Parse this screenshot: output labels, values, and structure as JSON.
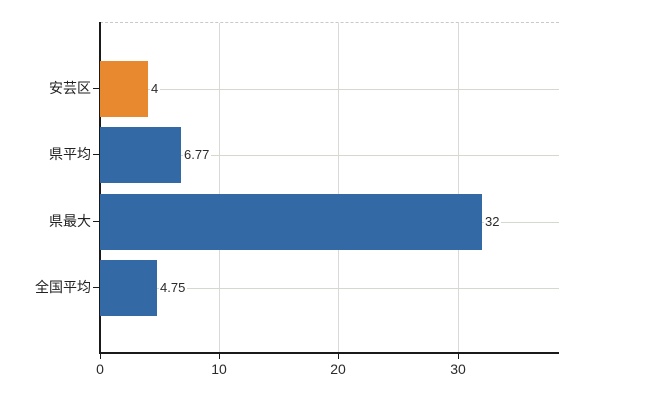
{
  "chart_data": {
    "type": "bar",
    "orientation": "horizontal",
    "title": "",
    "xlabel": "",
    "ylabel": "",
    "categories": [
      "安芸区",
      "県平均",
      "県最大",
      "全国平均"
    ],
    "values": [
      4,
      6.77,
      32,
      4.75
    ],
    "value_labels": [
      "4",
      "6.77",
      "32",
      "4.75"
    ],
    "bar_colors": [
      "#e8882f",
      "#336aa6",
      "#336aa6",
      "#336aa6"
    ],
    "highlight_category": "安芸区",
    "x_ticks": [
      0,
      10,
      20,
      30
    ],
    "x_tick_labels": [
      "0",
      "10",
      "20",
      "30"
    ],
    "xlim": [
      0,
      38.5
    ],
    "grid": true,
    "legend": false
  },
  "colors": {
    "bar_blue": "#336aa6",
    "bar_orange": "#e8882f",
    "grid": "#d5dad2",
    "frame_dashed": "#c9c9c9",
    "axis": "#1a1a1a",
    "text": "#2b2b2b"
  }
}
